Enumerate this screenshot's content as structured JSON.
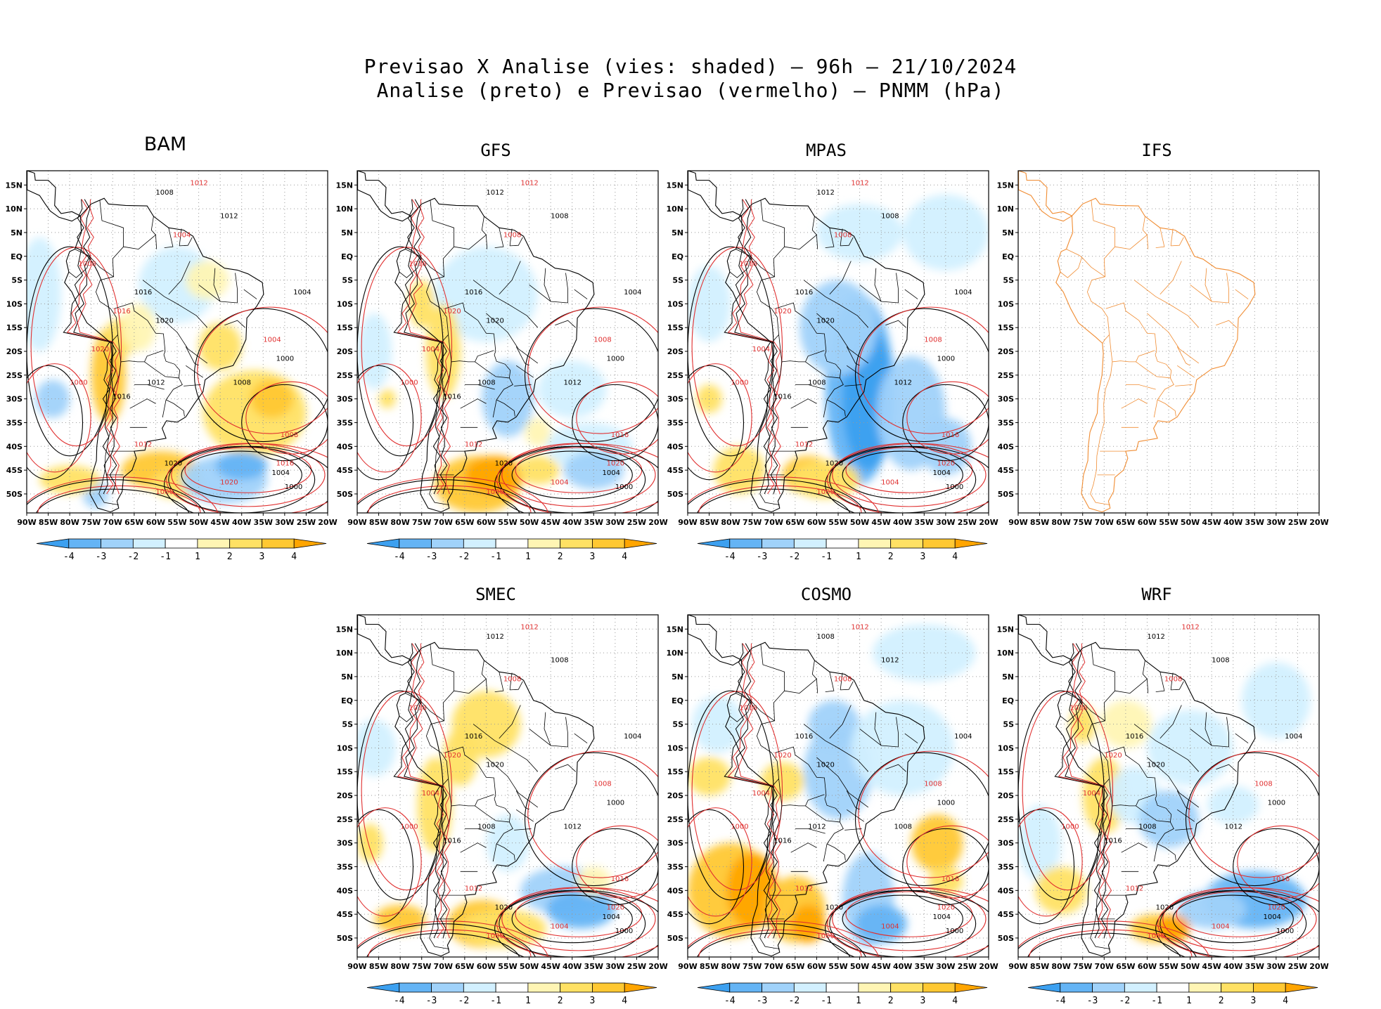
{
  "title": {
    "line1": "Previsao X Analise (vies: shaded) — 96h — 21/10/2024",
    "line2": "Analise (preto) e Previsao (vermelho) — PNMM (hPa)"
  },
  "axes": {
    "lon_labels": [
      "90W",
      "85W",
      "80W",
      "75W",
      "70W",
      "65W",
      "60W",
      "55W",
      "50W",
      "45W",
      "40W",
      "35W",
      "30W",
      "25W",
      "20W"
    ],
    "lat_labels": [
      "15N",
      "10N",
      "5N",
      "EQ",
      "5S",
      "10S",
      "15S",
      "20S",
      "25S",
      "30S",
      "35S",
      "40S",
      "45S",
      "50S"
    ]
  },
  "colorbar": {
    "labels": [
      "-4",
      "-3",
      "-2",
      "-1",
      "1",
      "2",
      "3",
      "4"
    ],
    "colors": [
      "#3ca0f0",
      "#64b4f5",
      "#a0d2fa",
      "#d2f0ff",
      "#ffffff",
      "#fff5b4",
      "#ffe164",
      "#ffc832",
      "#ffa500"
    ]
  },
  "colors": {
    "analysis": "#000000",
    "forecast": "#e03030",
    "coast_ifs": "#f08c32",
    "grid": "#9a9a9a"
  },
  "panels": [
    {
      "name": "BAM",
      "title_big": true,
      "has_data": true,
      "colorbar": true,
      "labels_black": [
        "1008",
        "1012",
        "1016",
        "1020",
        "1004",
        "1000"
      ],
      "labels_red": [
        "1012",
        "1004",
        "1008",
        "1016",
        "1020",
        "1000"
      ]
    },
    {
      "name": "GFS",
      "title_big": false,
      "has_data": true,
      "colorbar": true,
      "labels_black": [
        "1012",
        "1008",
        "1016",
        "1020",
        "1004",
        "1000"
      ],
      "labels_red": [
        "1012",
        "1008",
        "1016",
        "1020",
        "1004",
        "1000"
      ]
    },
    {
      "name": "MPAS",
      "title_big": false,
      "has_data": true,
      "colorbar": true,
      "labels_black": [
        "1012",
        "1008",
        "1016",
        "1020",
        "1004",
        "1000"
      ],
      "labels_red": [
        "1012",
        "1008",
        "1016",
        "1020",
        "1004",
        "1000"
      ]
    },
    {
      "name": "IFS",
      "title_big": false,
      "has_data": false,
      "colorbar": false,
      "labels_black": [],
      "labels_red": []
    },
    {
      "name": "SMEC",
      "title_big": false,
      "has_data": true,
      "colorbar": true,
      "labels_black": [
        "1012",
        "1008",
        "1016",
        "1020",
        "1004",
        "1000"
      ],
      "labels_red": [
        "1012",
        "1008",
        "1016",
        "1020",
        "1004",
        "1000"
      ]
    },
    {
      "name": "COSMO",
      "title_big": false,
      "has_data": true,
      "colorbar": true,
      "labels_black": [
        "1008",
        "1012",
        "1016",
        "1020",
        "1004",
        "1000"
      ],
      "labels_red": [
        "1012",
        "1008",
        "1016",
        "1020",
        "1004",
        "1000"
      ]
    },
    {
      "name": "WRF",
      "title_big": false,
      "has_data": true,
      "colorbar": true,
      "labels_black": [
        "1012",
        "1008",
        "1016",
        "1020",
        "1004",
        "1000"
      ],
      "labels_red": [
        "1012",
        "1008",
        "1016",
        "1020",
        "1004",
        "1000"
      ]
    }
  ]
}
